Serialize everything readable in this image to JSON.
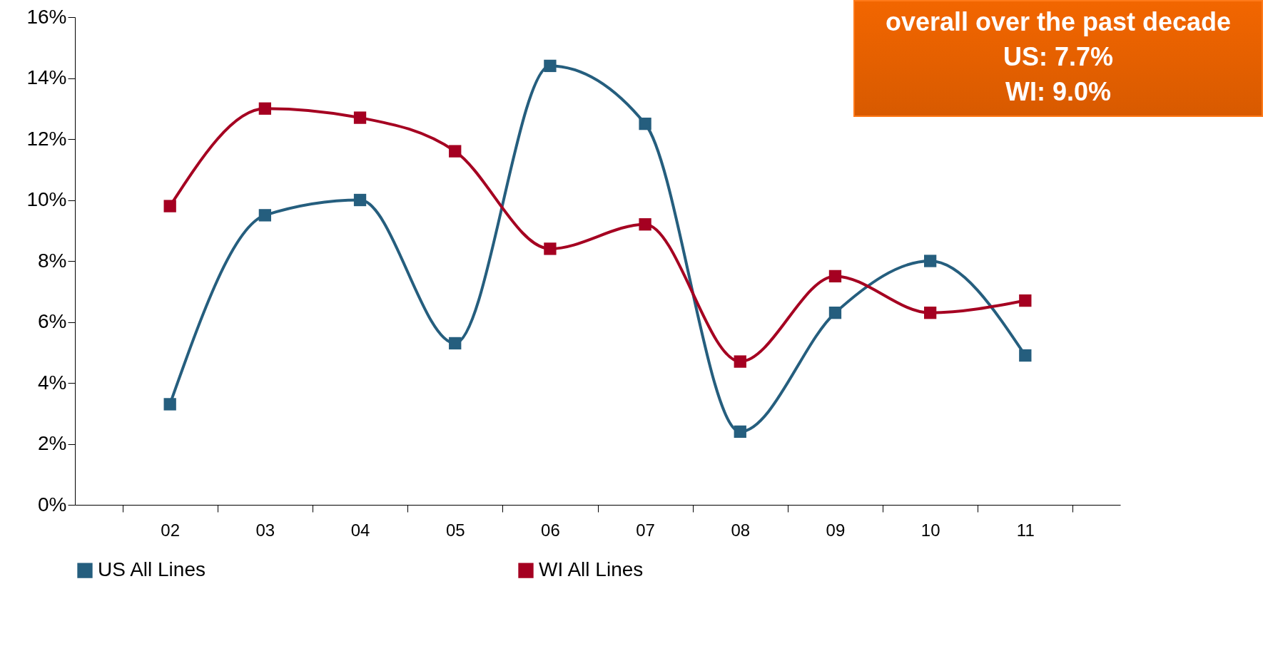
{
  "chart_data": {
    "type": "line",
    "categories": [
      "02",
      "03",
      "04",
      "05",
      "06",
      "07",
      "08",
      "09",
      "10",
      "11"
    ],
    "series": [
      {
        "name": "US All Lines",
        "color": "#255e7e",
        "values": [
          3.3,
          9.5,
          10.0,
          5.3,
          14.4,
          12.5,
          2.4,
          6.3,
          8.0,
          4.9
        ]
      },
      {
        "name": "WI All Lines",
        "color": "#a50021",
        "values": [
          9.8,
          13.0,
          12.7,
          11.6,
          8.4,
          9.2,
          4.7,
          7.5,
          6.3,
          6.7
        ]
      }
    ],
    "ylim": [
      0,
      16
    ],
    "yticks": [
      {
        "value": 0,
        "label": "0%"
      },
      {
        "value": 2,
        "label": "2%"
      },
      {
        "value": 4,
        "label": "4%"
      },
      {
        "value": 6,
        "label": "6%"
      },
      {
        "value": 8,
        "label": "8%"
      },
      {
        "value": 10,
        "label": "10%"
      },
      {
        "value": 12,
        "label": "12%"
      },
      {
        "value": 14,
        "label": "14%"
      },
      {
        "value": 16,
        "label": "16%"
      }
    ],
    "annotations": [
      "overall over the past decade",
      "US: 7.7%",
      "WI: 9.0%"
    ],
    "marker": "square",
    "line_style": "solid",
    "grid": false,
    "legend": "bottom"
  }
}
